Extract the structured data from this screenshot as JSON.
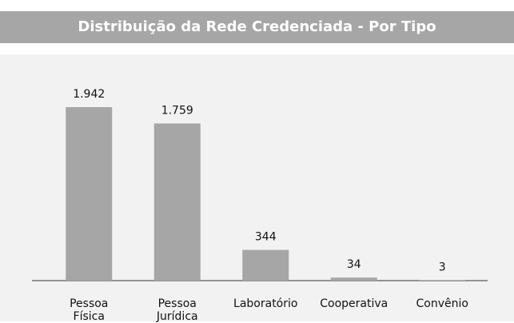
{
  "chart_data": {
    "type": "bar",
    "title": "Distribuição da Rede Credenciada - Por Tipo",
    "categories": [
      "Pessoa Física",
      "Pessoa Jurídica",
      "Laboratório",
      "Cooperativa",
      "Convênio"
    ],
    "values": [
      1942,
      1759,
      344,
      34,
      3
    ],
    "value_labels": [
      "1.942",
      "1.759",
      "344",
      "34",
      "3"
    ],
    "color": "#a6a6a6"
  }
}
